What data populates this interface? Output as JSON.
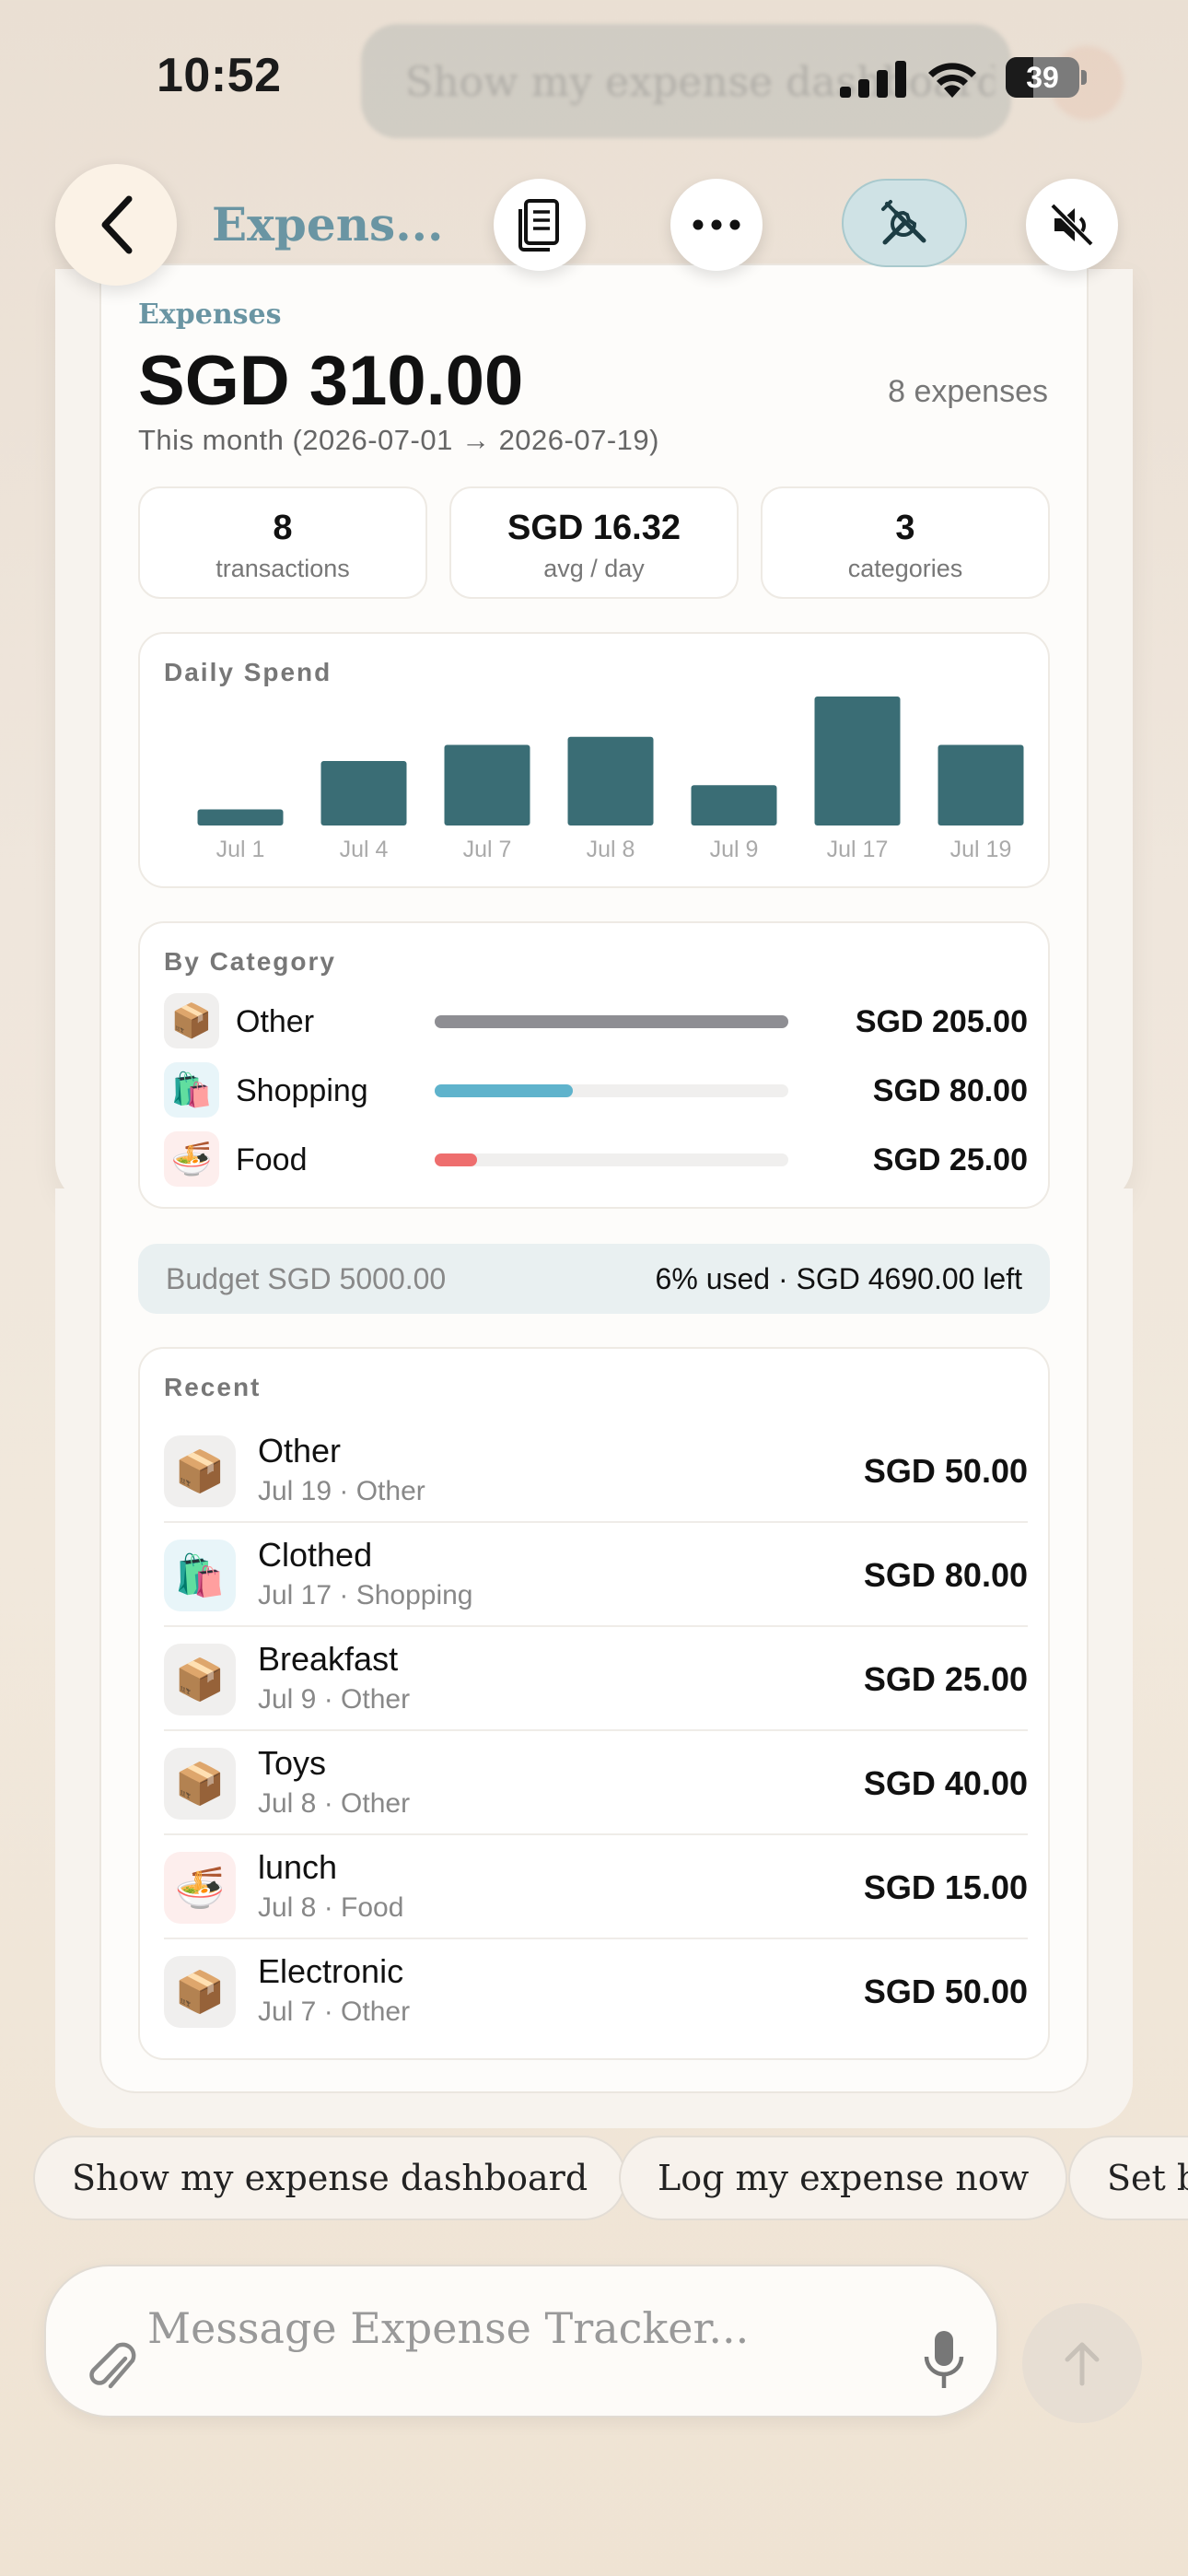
{
  "status_bar": {
    "time": "10:52",
    "battery": "39"
  },
  "ghost_prompt": "Show my expense dashboard",
  "nav": {
    "title": "Expens..."
  },
  "summary": {
    "label": "Expenses",
    "total": "SGD 310.00",
    "count": "8 expenses",
    "period": "This month (2026-07-01 → 2026-07-19)"
  },
  "stats": [
    {
      "value": "8",
      "label": "transactions"
    },
    {
      "value": "SGD 16.32",
      "label": "avg / day"
    },
    {
      "value": "3",
      "label": "categories"
    }
  ],
  "daily_spend": {
    "title": "Daily Spend"
  },
  "chart_data": {
    "type": "bar",
    "title": "Daily Spend",
    "categories": [
      "Jul 1",
      "Jul 4",
      "Jul 7",
      "Jul 8",
      "Jul 9",
      "Jul 17",
      "Jul 19"
    ],
    "values": [
      10,
      40,
      50,
      55,
      25,
      80,
      50
    ],
    "xlabel": "",
    "ylabel": "",
    "ylim": [
      0,
      80
    ],
    "grid": false,
    "bar_color": "#3a6d75"
  },
  "by_category": {
    "title": "By Category",
    "items": [
      {
        "icon": "package-icon",
        "glyph": "📦",
        "name": "Other",
        "amount": "SGD 205.00",
        "share": 1.0,
        "color": "#8e8e93",
        "icon_bg": "#f0efee"
      },
      {
        "icon": "shopping-bags-icon",
        "glyph": "🛍️",
        "name": "Shopping",
        "amount": "SGD 80.00",
        "share": 0.39,
        "color": "#5fb3cc",
        "icon_bg": "#e8f5f9"
      },
      {
        "icon": "noodle-bowl-icon",
        "glyph": "🍜",
        "name": "Food",
        "amount": "SGD 25.00",
        "share": 0.12,
        "color": "#ee6e6e",
        "icon_bg": "#fdeeed"
      }
    ]
  },
  "budget": {
    "left": "Budget SGD 5000.00",
    "right": "6% used · SGD 4690.00 left"
  },
  "recent": {
    "title": "Recent",
    "items": [
      {
        "icon": "package-icon",
        "glyph": "📦",
        "name": "Other",
        "sub": "Jul 19 · Other",
        "amount": "SGD 50.00",
        "icon_bg": "#f0efee"
      },
      {
        "icon": "shopping-bags-icon",
        "glyph": "🛍️",
        "name": "Clothed",
        "sub": "Jul 17 · Shopping",
        "amount": "SGD 80.00",
        "icon_bg": "#e8f5f9"
      },
      {
        "icon": "package-icon",
        "glyph": "📦",
        "name": "Breakfast",
        "sub": "Jul 9 · Other",
        "amount": "SGD 25.00",
        "icon_bg": "#f0efee"
      },
      {
        "icon": "package-icon",
        "glyph": "📦",
        "name": "Toys",
        "sub": "Jul 8 · Other",
        "amount": "SGD 40.00",
        "icon_bg": "#f0efee"
      },
      {
        "icon": "noodle-bowl-icon",
        "glyph": "🍜",
        "name": "lunch",
        "sub": "Jul 8 · Food",
        "amount": "SGD 15.00",
        "icon_bg": "#fdeeed"
      },
      {
        "icon": "package-icon",
        "glyph": "📦",
        "name": "Electronic",
        "sub": "Jul 7 · Other",
        "amount": "SGD 50.00",
        "icon_bg": "#f0efee"
      }
    ]
  },
  "suggestions": [
    "Show my expense dashboard",
    "Log my expense now",
    "Set b"
  ],
  "composer": {
    "placeholder": "Message Expense Tracker..."
  },
  "colors": {
    "accent": "#6a95a3",
    "bar": "#3a6d75",
    "tools_active": "#cfe2e5"
  }
}
